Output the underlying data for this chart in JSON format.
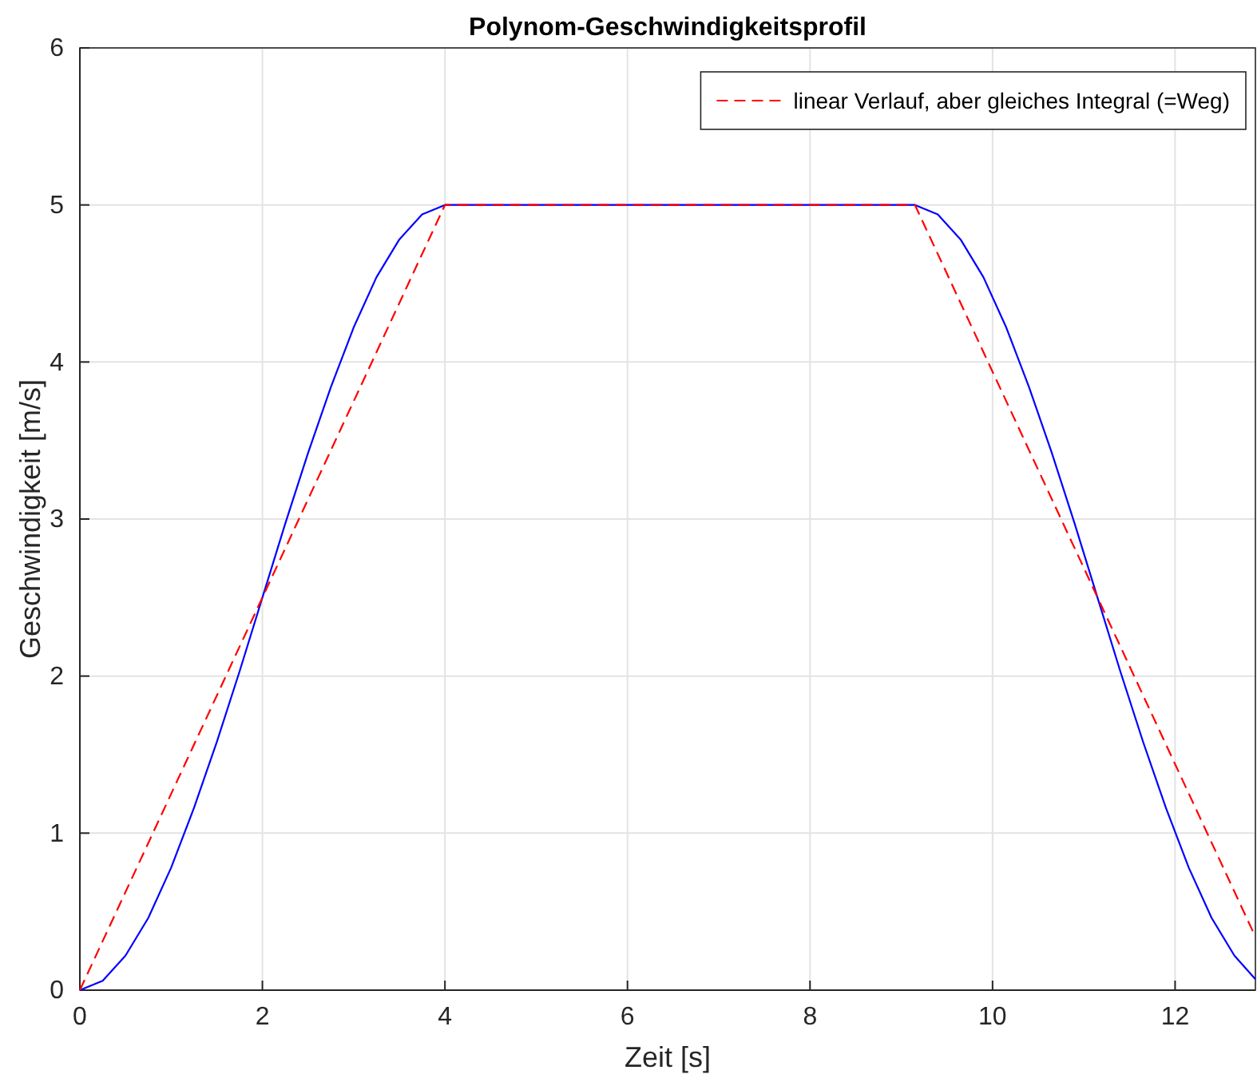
{
  "chart_data": {
    "type": "line",
    "title": "Polynom-Geschwindigkeitsprofil",
    "xlabel": "Zeit [s]",
    "ylabel": "Geschwindigkeit [m/s]",
    "xlim": [
      0,
      12.88
    ],
    "xticks": [
      0,
      2,
      4,
      6,
      8,
      10,
      12
    ],
    "ylim": [
      0,
      6
    ],
    "yticks": [
      0,
      1,
      2,
      3,
      4,
      5,
      6
    ],
    "grid": true,
    "legend": "top right",
    "series": [
      {
        "color": "#0000ff",
        "line_style": "solid",
        "x": [
          0,
          0.25,
          0.5,
          0.75,
          1,
          1.25,
          1.5,
          1.75,
          2,
          2.25,
          2.5,
          2.75,
          3,
          3.25,
          3.5,
          3.75,
          4,
          9.15,
          9.4,
          9.65,
          9.9,
          10.15,
          10.4,
          10.65,
          10.9,
          11.15,
          11.4,
          11.65,
          11.9,
          12.15,
          12.4,
          12.65,
          12.88
        ],
        "values": [
          0,
          0.06,
          0.22,
          0.46,
          0.78,
          1.16,
          1.58,
          2.03,
          2.5,
          2.97,
          3.42,
          3.84,
          4.22,
          4.54,
          4.78,
          4.94,
          5,
          5,
          4.94,
          4.78,
          4.54,
          4.22,
          3.84,
          3.42,
          2.97,
          2.5,
          2.03,
          1.58,
          1.16,
          0.78,
          0.46,
          0.22,
          0.07
        ]
      },
      {
        "name": "linear Verlauf, aber gleiches Integral (=Weg)",
        "color": "#ff0000",
        "line_style": "dashed",
        "x": [
          0,
          4,
          9.15,
          12.88
        ],
        "values": [
          0,
          5,
          5,
          0.34
        ]
      }
    ]
  }
}
